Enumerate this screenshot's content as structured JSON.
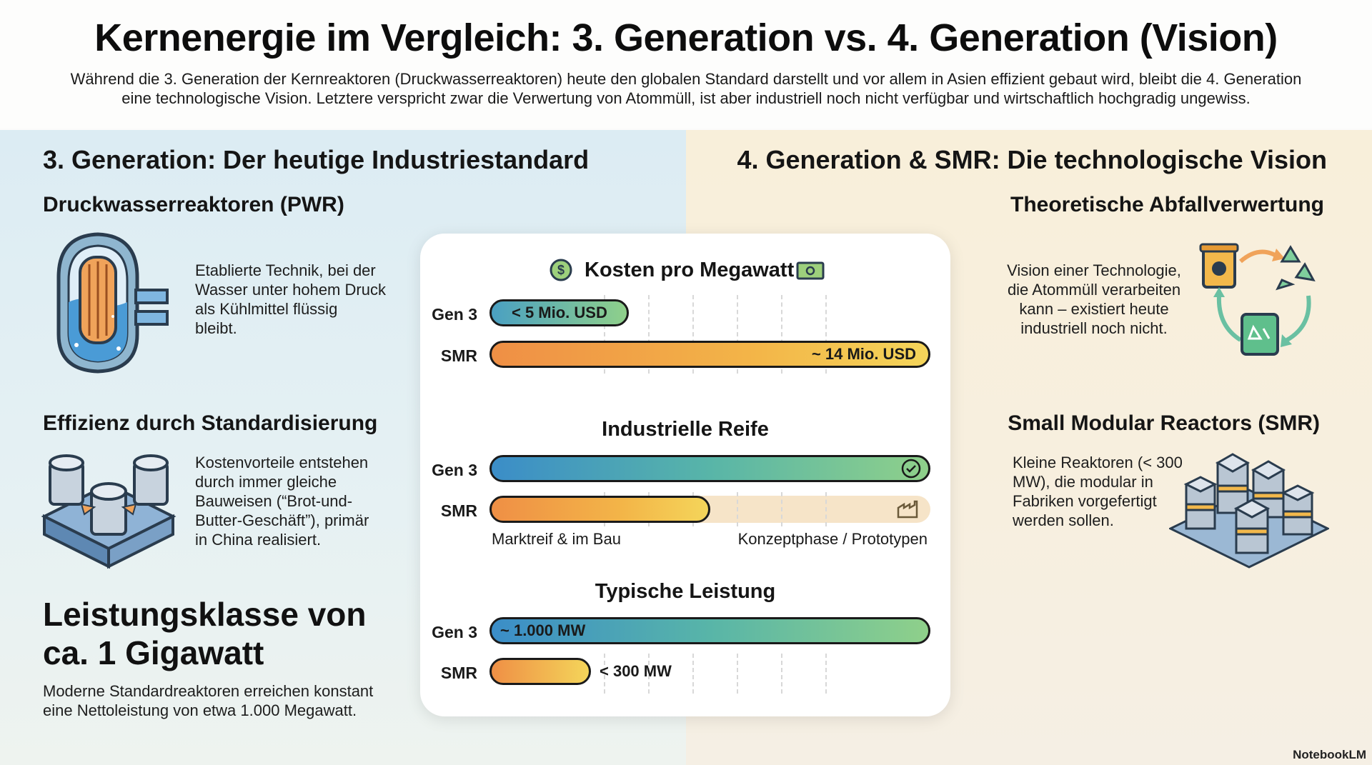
{
  "header": {
    "title": "Kernenergie im Vergleich: 3. Generation vs. 4. Generation (Vision)",
    "intro_line1": "Während die 3. Generation der Kernreaktoren (Druckwasserreaktoren) heute den globalen Standard darstellt und vor allem in Asien effizient gebaut wird, bleibt die 4. Generation",
    "intro_line2": "eine technologische Vision. Letztere verspricht zwar die Verwertung von Atommüll, ist aber industriell noch nicht verfügbar und wirtschaftlich hochgradig ungewiss."
  },
  "left": {
    "heading": "3. Generation: Der heutige Industriestandard",
    "pwr": {
      "title": "Druckwasserreaktoren (PWR)",
      "lines": [
        "Etablierte Technik, bei der",
        "Wasser unter hohem Druck",
        "als Kühlmittel flüssig",
        "bleibt."
      ]
    },
    "standard": {
      "title": "Effizienz durch Standardisierung",
      "lines": [
        "Kostenvorteile entstehen",
        "durch immer gleiche",
        "Bauweisen (“Brot-und-",
        "Butter-Geschäft”), primär",
        "in China realisiert."
      ]
    },
    "power": {
      "title_line1": "Leistungsklasse von",
      "title_line2": "ca. 1 Gigawatt",
      "lines": [
        "Moderne Standardreaktoren erreichen konstant",
        "eine Nettoleistung von etwa 1.000 Megawatt."
      ]
    }
  },
  "right": {
    "heading": "4. Generation & SMR: Die technologische Vision",
    "waste": {
      "title": "Theoretische Abfallverwertung",
      "lines": [
        "Vision einer Technologie,",
        "die Atommüll verarbeiten",
        "kann – existiert heute",
        "industriell noch nicht."
      ]
    },
    "smr": {
      "title": "Small Modular Reactors (SMR)",
      "lines": [
        "Kleine Reaktoren (< 300",
        "MW), die modular in",
        "Fabriken vorgefertigt",
        "werden sollen."
      ]
    }
  },
  "chart_data": [
    {
      "type": "bar",
      "title": "Kosten pro Megawatt",
      "categories": [
        "Gen 3",
        "SMR"
      ],
      "values": [
        5,
        14
      ],
      "value_labels": [
        "< 5 Mio. USD",
        "~ 14 Mio. USD"
      ],
      "max": 14
    },
    {
      "type": "bar",
      "title": "Industrielle Reife",
      "categories": [
        "Gen 3",
        "SMR"
      ],
      "values": [
        1.0,
        0.5
      ],
      "scale_labels": [
        "Marktreif & im Bau",
        "Konzeptphase / Prototypen"
      ]
    },
    {
      "type": "bar",
      "title": "Typische Leistung",
      "categories": [
        "Gen 3",
        "SMR"
      ],
      "values": [
        1000,
        300
      ],
      "value_labels": [
        "~ 1.000 MW",
        "< 300 MW"
      ],
      "max": 1000
    }
  ],
  "brand": "NotebookLM",
  "colors": {
    "warm_start": "#ef8f45",
    "warm_end": "#f4d55a",
    "cool_start": "#3b8dc8",
    "cool_end": "#8fd08a"
  }
}
